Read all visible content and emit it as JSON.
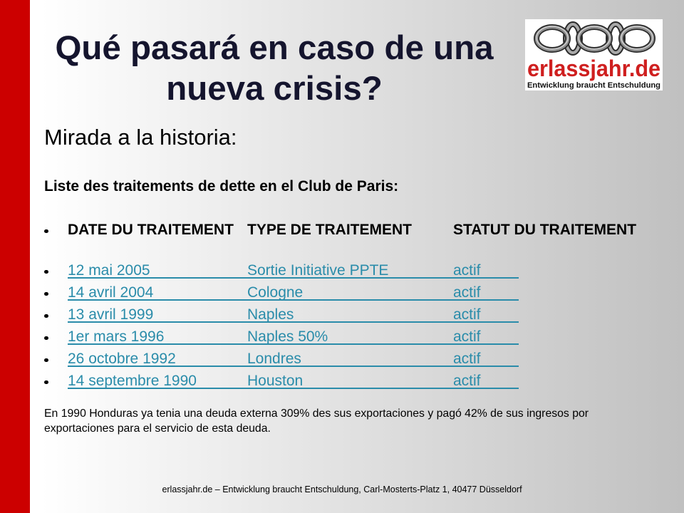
{
  "slide": {
    "title": {
      "line1": "Qué pasará en caso de una",
      "line2": "nueva crisis?"
    },
    "subtitle": "Mirada a la historia:",
    "list_heading": "Liste des traitements de dette en el Club de Paris:",
    "table": {
      "headers": {
        "date": "DATE DU TRAITEMENT",
        "type": "TYPE DE TRAITEMENT",
        "status": "STATUT DU TRAITEMENT"
      },
      "rows": [
        {
          "date": "12 mai 2005",
          "type": "Sortie Initiative PPTE",
          "status": "actif"
        },
        {
          "date": "14 avril 2004",
          "type": "Cologne",
          "status": "actif"
        },
        {
          "date": "13 avril 1999",
          "type": "Naples",
          "status": "actif"
        },
        {
          "date": "1er mars 1996",
          "type": "Naples 50%",
          "status": "actif"
        },
        {
          "date": "26 octobre 1992",
          "type": "Londres",
          "status": "actif"
        },
        {
          "date": "14 septembre 1990",
          "type": "Houston",
          "status": "actif"
        }
      ]
    },
    "note": "En 1990 Honduras ya tenia una deuda externa 309% des sus exportaciones y pagó 42% de sus ingresos por exportaciones para el servicio de esta deuda.",
    "footer": "erlassjahr.de – Entwicklung braucht Entschuldung, Carl-Mosterts-Platz 1, 40477 Düsseldorf"
  },
  "logo": {
    "wordmark": "erlassjahr.de",
    "tagline": "Entwicklung braucht Entschuldung",
    "icon": "chain-links-icon"
  },
  "icons": {
    "bullet": "bullet-dot-icon"
  },
  "colors": {
    "accent_bar": "#cc0000",
    "title": "#15152e",
    "link": "#2a8caa",
    "logo_red": "#cf1f1f",
    "background_right": "#c0c0c0"
  }
}
